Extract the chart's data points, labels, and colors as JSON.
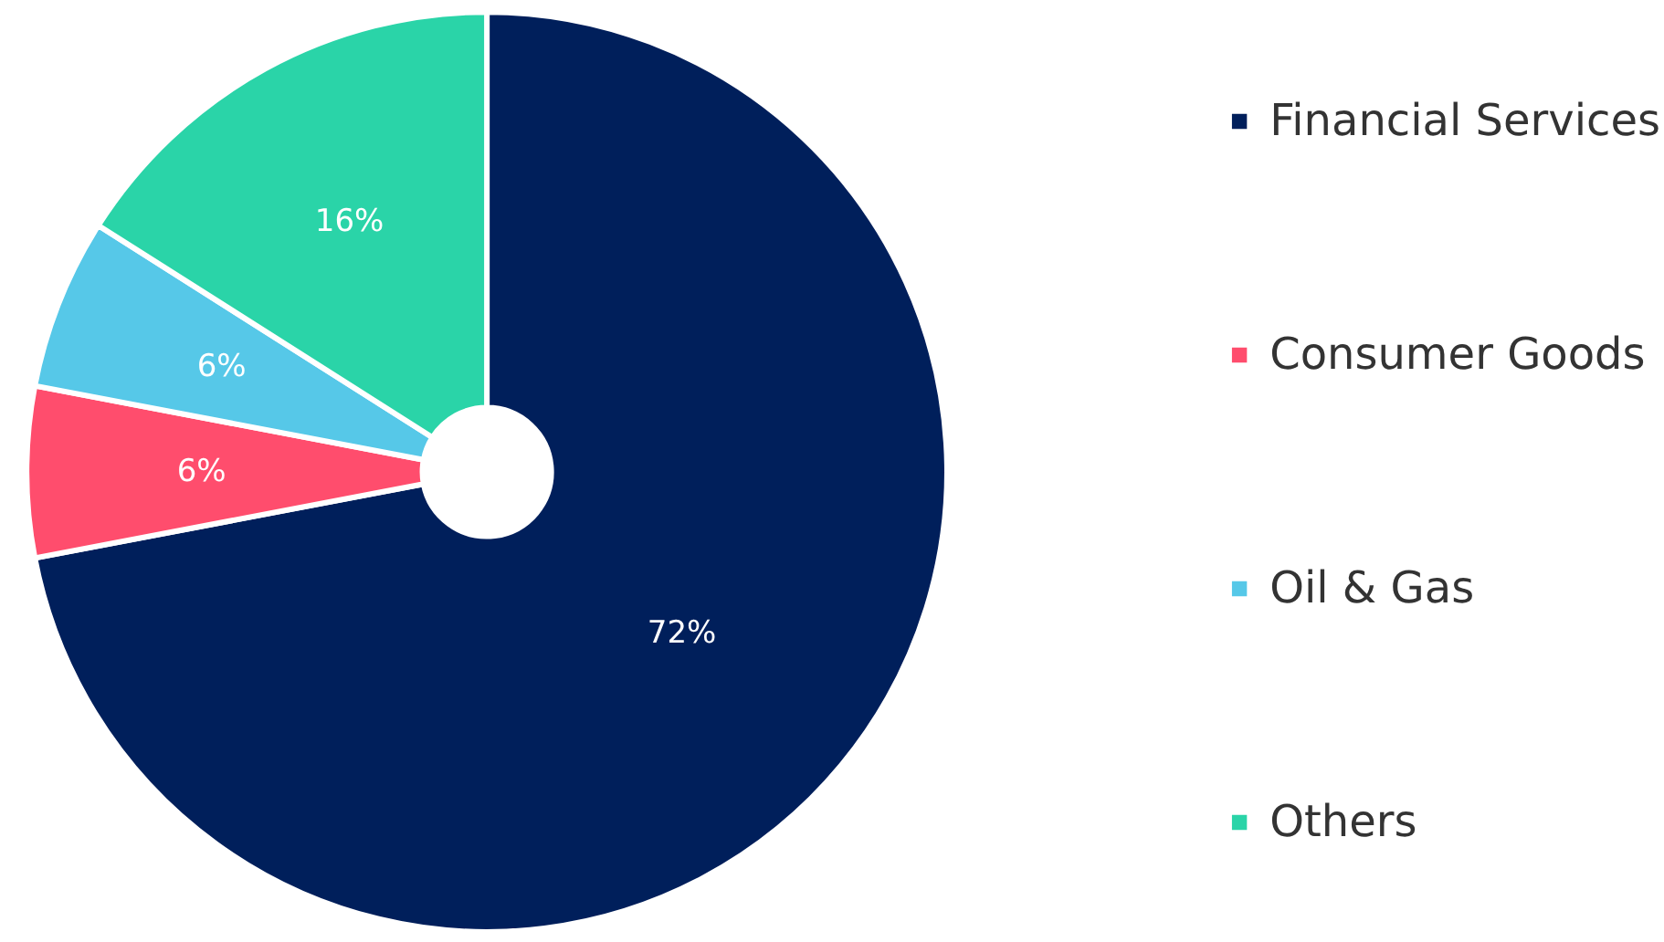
{
  "chart_data": {
    "type": "donut",
    "categories": [
      "Financial Services",
      "Consumer Goods",
      "Oil & Gas",
      "Others"
    ],
    "values": [
      72,
      6,
      6,
      16
    ],
    "colors": [
      "#001f5b",
      "#ff4d6d",
      "#56c8e8",
      "#2ad4a8"
    ],
    "value_labels": [
      "72%",
      "6%",
      "6%",
      "16%"
    ],
    "legend": "right"
  }
}
